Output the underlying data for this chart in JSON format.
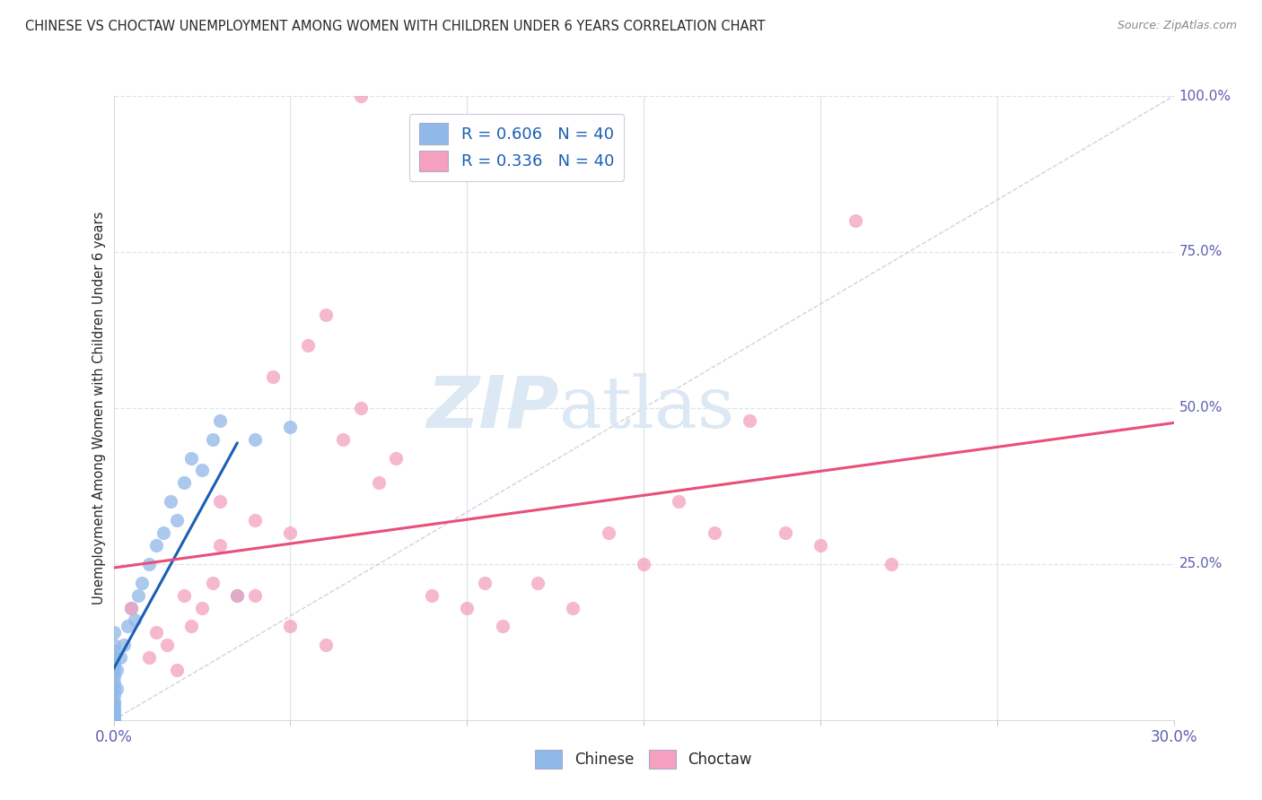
{
  "title": "CHINESE VS CHOCTAW UNEMPLOYMENT AMONG WOMEN WITH CHILDREN UNDER 6 YEARS CORRELATION CHART",
  "source": "Source: ZipAtlas.com",
  "ylabel": "Unemployment Among Women with Children Under 6 years",
  "xlim": [
    0.0,
    30.0
  ],
  "ylim": [
    0.0,
    100.0
  ],
  "legend_r_n": [
    {
      "r": "0.606",
      "n": "40",
      "color": "#a8c8f0"
    },
    {
      "r": "0.336",
      "n": "40",
      "color": "#f8b8cc"
    }
  ],
  "chinese_x": [
    0.0,
    0.0,
    0.0,
    0.0,
    0.0,
    0.0,
    0.0,
    0.0,
    0.0,
    0.0,
    0.0,
    0.0,
    0.0,
    0.0,
    0.0,
    0.0,
    0.0,
    0.0,
    0.1,
    0.1,
    0.2,
    0.3,
    0.4,
    0.5,
    0.6,
    0.7,
    0.8,
    1.0,
    1.2,
    1.4,
    1.6,
    1.8,
    2.0,
    2.2,
    2.5,
    2.8,
    3.0,
    3.5,
    4.0,
    5.0
  ],
  "chinese_y": [
    0.0,
    0.0,
    0.5,
    1.0,
    1.5,
    2.0,
    2.5,
    3.0,
    4.0,
    5.0,
    6.0,
    7.0,
    8.0,
    9.0,
    10.0,
    11.0,
    12.0,
    14.0,
    5.0,
    8.0,
    10.0,
    12.0,
    15.0,
    18.0,
    16.0,
    20.0,
    22.0,
    25.0,
    28.0,
    30.0,
    35.0,
    32.0,
    38.0,
    42.0,
    40.0,
    45.0,
    48.0,
    20.0,
    45.0,
    47.0
  ],
  "choctaw_x": [
    0.5,
    1.0,
    1.2,
    1.5,
    1.8,
    2.0,
    2.2,
    2.5,
    2.8,
    3.0,
    3.5,
    4.0,
    4.5,
    5.0,
    5.5,
    6.0,
    6.5,
    7.0,
    7.5,
    8.0,
    9.0,
    10.0,
    10.5,
    11.0,
    12.0,
    13.0,
    14.0,
    15.0,
    16.0,
    17.0,
    18.0,
    19.0,
    20.0,
    21.0,
    22.0,
    3.0,
    4.0,
    5.0,
    6.0,
    7.0
  ],
  "choctaw_y": [
    18.0,
    10.0,
    14.0,
    12.0,
    8.0,
    20.0,
    15.0,
    18.0,
    22.0,
    28.0,
    20.0,
    32.0,
    55.0,
    30.0,
    60.0,
    65.0,
    45.0,
    50.0,
    38.0,
    42.0,
    20.0,
    18.0,
    22.0,
    15.0,
    22.0,
    18.0,
    30.0,
    25.0,
    35.0,
    30.0,
    48.0,
    30.0,
    28.0,
    80.0,
    25.0,
    35.0,
    20.0,
    15.0,
    12.0,
    100.0
  ],
  "chinese_color": "#90b8e8",
  "choctaw_color": "#f4a0be",
  "chinese_line_color": "#1a5fb4",
  "choctaw_line_color": "#e8507a",
  "diagonal_color": "#c0c8d8",
  "background_color": "#ffffff",
  "grid_color": "#dde4ee",
  "title_color": "#282828",
  "ylabel_color": "#282828",
  "axis_tick_color": "#6060b0",
  "watermark_zip": "ZIP",
  "watermark_atlas": "atlas",
  "watermark_color": "#dce8f4"
}
